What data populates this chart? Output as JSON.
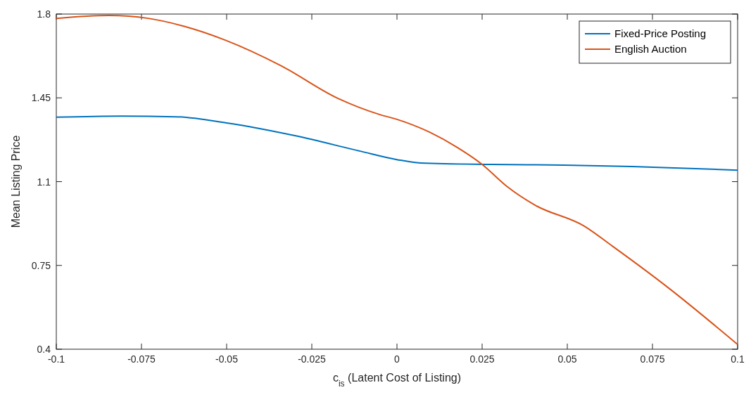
{
  "chart_data": {
    "type": "line",
    "xlabel": "c$_{is}$ (Latent Cost of Listing)",
    "ylabel": "Mean Listing Price",
    "xlim": [
      -0.1,
      0.1
    ],
    "ylim": [
      0.4,
      1.8
    ],
    "xticks": [
      -0.1,
      -0.075,
      -0.05,
      -0.025,
      0,
      0.025,
      0.05,
      0.075,
      0.1
    ],
    "yticks": [
      0.4,
      0.75,
      1.1,
      1.45,
      1.8
    ],
    "grid": false,
    "legend": "top right",
    "line_style": "solid",
    "marker": "none",
    "series": [
      {
        "name": "Fixed-Price Posting",
        "color": "#0072bd",
        "x": [
          -0.1,
          -0.081,
          -0.065,
          -0.05,
          -0.03,
          -0.011,
          0,
          0.007,
          0.028,
          0.049,
          0.069,
          0.1
        ],
        "values": [
          1.369,
          1.374,
          1.371,
          1.345,
          1.292,
          1.228,
          1.192,
          1.178,
          1.172,
          1.169,
          1.163,
          1.148
        ]
      },
      {
        "name": "English Auction",
        "color": "#d95319",
        "x": [
          -0.1,
          -0.0845,
          -0.073,
          -0.0628,
          -0.0504,
          -0.0339,
          -0.0174,
          -0.005,
          0,
          0.0095,
          0.0178,
          0.025,
          0.0322,
          0.0405,
          0.055,
          0.0632,
          0.0798,
          0.1
        ],
        "values": [
          1.782,
          1.794,
          1.782,
          1.75,
          1.691,
          1.583,
          1.448,
          1.38,
          1.36,
          1.307,
          1.242,
          1.172,
          1.081,
          1.002,
          0.914,
          0.831,
          0.655,
          0.42
        ]
      }
    ]
  }
}
